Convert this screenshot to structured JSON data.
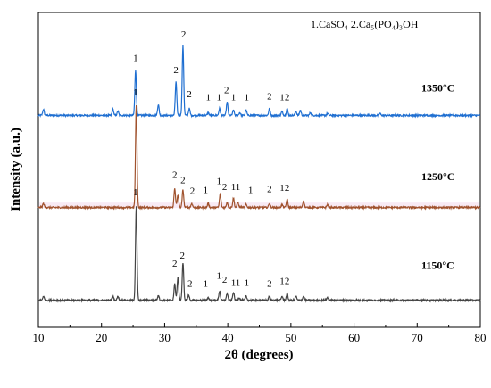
{
  "chart_data": {
    "type": "line",
    "xlabel": "2θ (degrees)",
    "ylabel": "Intensity (a.u.)",
    "xlim": [
      10,
      80
    ],
    "x_ticks": [
      10,
      20,
      30,
      40,
      50,
      60,
      70,
      80
    ],
    "legend": "1.CaSO₄   2.Ca₅(PO₄)₃OH",
    "legend_position": "top-right",
    "series": [
      {
        "name": "1350°C",
        "color": "#1f6fd1",
        "baseline": 5.25,
        "noise": 0.04,
        "peaks": [
          [
            10.8,
            0.15
          ],
          [
            21.8,
            0.15
          ],
          [
            22.6,
            0.1
          ],
          [
            25.4,
            1.12
          ],
          [
            29.0,
            0.27
          ],
          [
            31.8,
            0.83
          ],
          [
            32.9,
            1.72
          ],
          [
            33.9,
            0.17
          ],
          [
            36.9,
            0.07
          ],
          [
            38.7,
            0.17
          ],
          [
            39.9,
            0.33
          ],
          [
            40.9,
            0.13
          ],
          [
            41.9,
            0.07
          ],
          [
            42.9,
            0.13
          ],
          [
            46.6,
            0.17
          ],
          [
            48.6,
            0.1
          ],
          [
            49.4,
            0.17
          ],
          [
            50.8,
            0.1
          ],
          [
            51.5,
            0.13
          ],
          [
            53.1,
            0.07
          ],
          [
            55.8,
            0.05
          ],
          [
            64.1,
            0.05
          ]
        ]
      },
      {
        "name": "1250°C",
        "color": "#a0522d",
        "baseline": 2.97,
        "noise": 0.04,
        "peaks": [
          [
            10.8,
            0.1
          ],
          [
            25.5,
            2.53
          ],
          [
            31.6,
            0.47
          ],
          [
            32.1,
            0.3
          ],
          [
            32.9,
            0.43
          ],
          [
            34.3,
            0.1
          ],
          [
            36.9,
            0.1
          ],
          [
            38.8,
            0.33
          ],
          [
            39.9,
            0.13
          ],
          [
            40.9,
            0.23
          ],
          [
            41.6,
            0.13
          ],
          [
            42.9,
            0.07
          ],
          [
            46.6,
            0.1
          ],
          [
            48.6,
            0.07
          ],
          [
            49.4,
            0.2
          ],
          [
            52.0,
            0.17
          ],
          [
            55.8,
            0.07
          ]
        ]
      },
      {
        "name": "1150°C",
        "color": "#444444",
        "baseline": 0.67,
        "noise": 0.04,
        "peaks": [
          [
            10.8,
            0.1
          ],
          [
            21.8,
            0.1
          ],
          [
            22.6,
            0.1
          ],
          [
            25.5,
            2.33
          ],
          [
            29.0,
            0.13
          ],
          [
            31.6,
            0.4
          ],
          [
            32.1,
            0.57
          ],
          [
            32.9,
            0.93
          ],
          [
            33.8,
            0.13
          ],
          [
            36.9,
            0.07
          ],
          [
            38.7,
            0.23
          ],
          [
            39.9,
            0.17
          ],
          [
            40.9,
            0.2
          ],
          [
            41.8,
            0.07
          ],
          [
            42.9,
            0.1
          ],
          [
            46.6,
            0.1
          ],
          [
            48.6,
            0.1
          ],
          [
            49.4,
            0.17
          ],
          [
            50.8,
            0.1
          ],
          [
            52.0,
            0.1
          ],
          [
            55.8,
            0.07
          ]
        ]
      }
    ],
    "annotations": [
      {
        "text": "1",
        "x": 25.4,
        "y": 6.6
      },
      {
        "text": "2",
        "x": 31.8,
        "y": 6.3
      },
      {
        "text": "2",
        "x": 33.0,
        "y": 7.18
      },
      {
        "text": "2",
        "x": 33.9,
        "y": 5.7
      },
      {
        "text": "1",
        "x": 36.9,
        "y": 5.62
      },
      {
        "text": "1",
        "x": 38.6,
        "y": 5.62
      },
      {
        "text": "2",
        "x": 39.8,
        "y": 5.8
      },
      {
        "text": "1",
        "x": 40.9,
        "y": 5.62
      },
      {
        "text": "1",
        "x": 43.0,
        "y": 5.62
      },
      {
        "text": "2",
        "x": 46.6,
        "y": 5.65
      },
      {
        "text": "1",
        "x": 48.6,
        "y": 5.62
      },
      {
        "text": "2",
        "x": 49.4,
        "y": 5.62
      },
      {
        "text": "1",
        "x": 25.4,
        "y": 5.75
      },
      {
        "text": "2",
        "x": 31.6,
        "y": 3.7
      },
      {
        "text": "2",
        "x": 32.9,
        "y": 3.57
      },
      {
        "text": "2",
        "x": 34.4,
        "y": 3.3
      },
      {
        "text": "1",
        "x": 36.5,
        "y": 3.33
      },
      {
        "text": "1",
        "x": 38.6,
        "y": 3.55
      },
      {
        "text": "2",
        "x": 39.5,
        "y": 3.4
      },
      {
        "text": "1",
        "x": 40.9,
        "y": 3.4
      },
      {
        "text": "1",
        "x": 41.6,
        "y": 3.4
      },
      {
        "text": "1",
        "x": 43.6,
        "y": 3.33
      },
      {
        "text": "2",
        "x": 46.6,
        "y": 3.35
      },
      {
        "text": "1",
        "x": 48.6,
        "y": 3.38
      },
      {
        "text": "2",
        "x": 49.4,
        "y": 3.38
      },
      {
        "text": "1",
        "x": 25.4,
        "y": 3.27
      },
      {
        "text": "2",
        "x": 31.6,
        "y": 1.5
      },
      {
        "text": "2",
        "x": 32.8,
        "y": 1.7
      },
      {
        "text": "2",
        "x": 34.0,
        "y": 1.0
      },
      {
        "text": "1",
        "x": 36.5,
        "y": 1.0
      },
      {
        "text": "1",
        "x": 38.6,
        "y": 1.2
      },
      {
        "text": "2",
        "x": 39.5,
        "y": 1.1
      },
      {
        "text": "1",
        "x": 40.9,
        "y": 1.03
      },
      {
        "text": "1",
        "x": 41.6,
        "y": 1.03
      },
      {
        "text": "1",
        "x": 43.0,
        "y": 1.03
      },
      {
        "text": "2",
        "x": 46.6,
        "y": 1.0
      },
      {
        "text": "1",
        "x": 48.6,
        "y": 1.07
      },
      {
        "text": "2",
        "x": 49.4,
        "y": 1.07
      }
    ],
    "series_labels": [
      {
        "text": "1350°C",
        "y": 5.85
      },
      {
        "text": "1250°C",
        "y": 3.65
      },
      {
        "text": "1150°C",
        "y": 1.45
      }
    ]
  }
}
